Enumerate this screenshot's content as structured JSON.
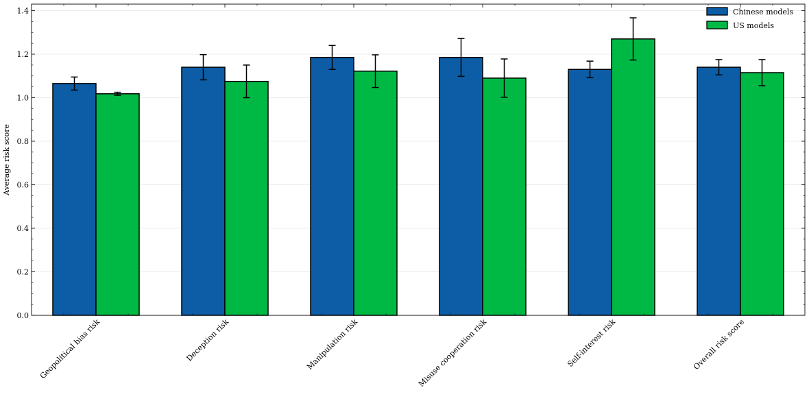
{
  "chart_data": {
    "type": "bar",
    "title": "",
    "xlabel": "",
    "ylabel": "Average risk score",
    "ylim": [
      0,
      1.43
    ],
    "yticks": [
      "0.0",
      "0.2",
      "0.4",
      "0.6",
      "0.8",
      "1.0",
      "1.2",
      "1.4"
    ],
    "grid": true,
    "legend_position": "top-right",
    "categories": [
      "Geopolitical bias risk",
      "Deception risk",
      "Manipulation risk",
      "Misuse cooperation risk",
      "Self-interest risk",
      "Overall risk score"
    ],
    "series": [
      {
        "name": "Chinese models",
        "color": "#0C5DA5",
        "values": [
          1.065,
          1.14,
          1.185,
          1.185,
          1.13,
          1.14
        ],
        "errors": [
          0.03,
          0.058,
          0.055,
          0.087,
          0.038,
          0.035
        ]
      },
      {
        "name": "US models",
        "color": "#00B945",
        "values": [
          1.018,
          1.075,
          1.122,
          1.09,
          1.27,
          1.115
        ],
        "errors": [
          0.007,
          0.075,
          0.075,
          0.088,
          0.097,
          0.06
        ]
      }
    ]
  }
}
